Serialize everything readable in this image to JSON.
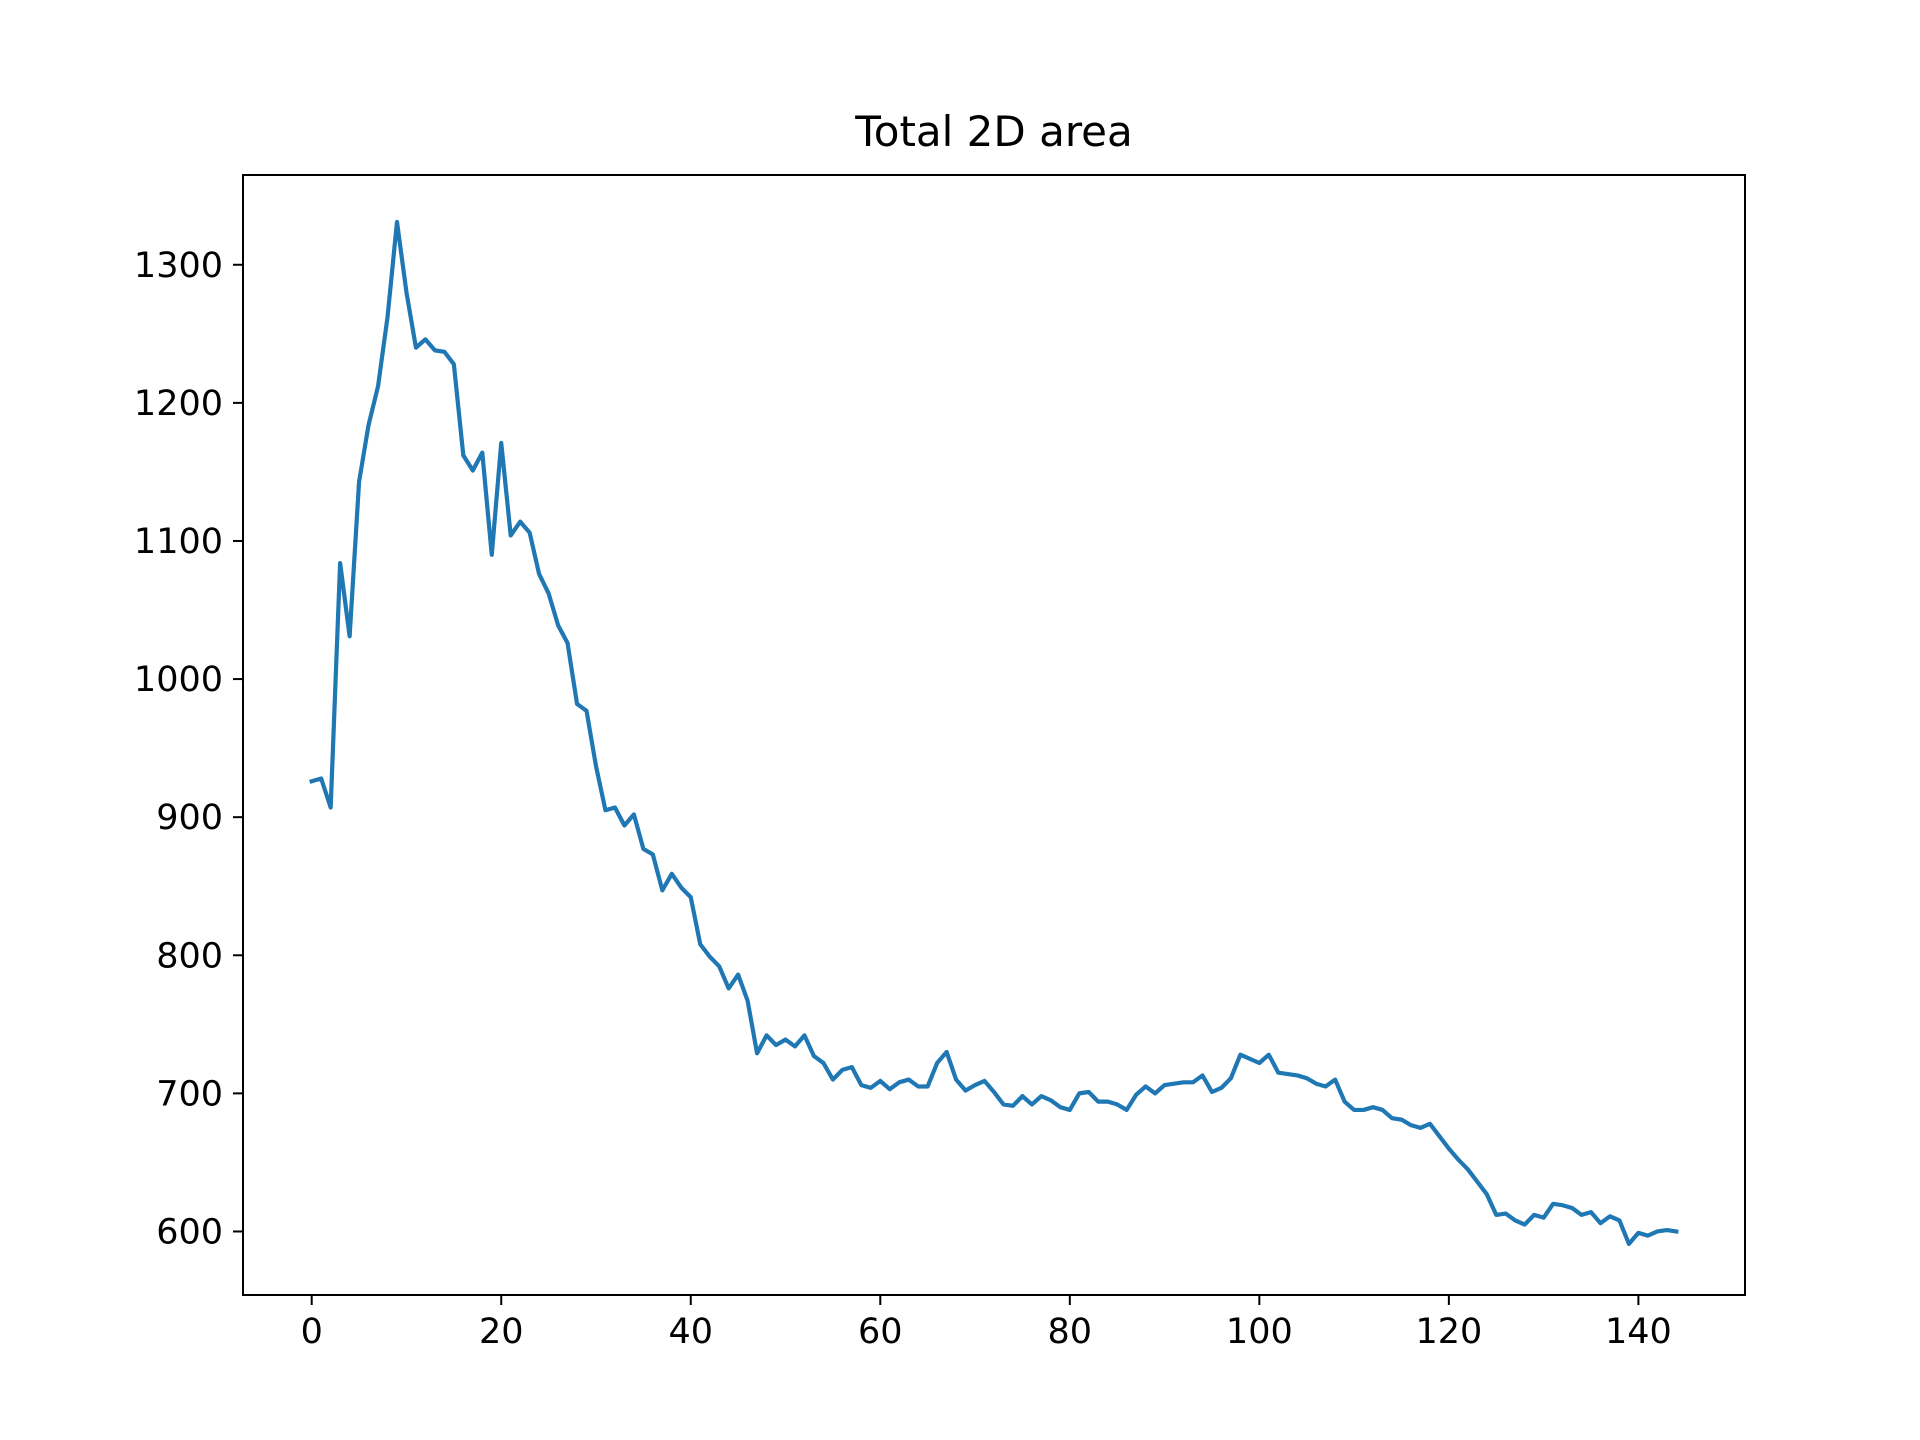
{
  "chart_data": {
    "type": "line",
    "title": "Total 2D area",
    "xlabel": "",
    "ylabel": "",
    "xlim": [
      -7.25,
      151.25
    ],
    "ylim": [
      554,
      1365
    ],
    "grid": false,
    "legend": "none",
    "x_ticks": [
      0,
      20,
      40,
      60,
      80,
      100,
      120,
      140
    ],
    "y_ticks": [
      600,
      700,
      800,
      900,
      1000,
      1100,
      1200,
      1300
    ],
    "series": [
      {
        "color": "#1f77b4",
        "x": [
          0,
          1,
          2,
          3,
          4,
          5,
          6,
          7,
          8,
          9,
          10,
          11,
          12,
          13,
          14,
          15,
          16,
          17,
          18,
          19,
          20,
          21,
          22,
          23,
          24,
          25,
          26,
          27,
          28,
          29,
          30,
          31,
          32,
          33,
          34,
          35,
          36,
          37,
          38,
          39,
          40,
          41,
          42,
          43,
          44,
          45,
          46,
          47,
          48,
          49,
          50,
          51,
          52,
          53,
          54,
          55,
          56,
          57,
          58,
          59,
          60,
          61,
          62,
          63,
          64,
          65,
          66,
          67,
          68,
          69,
          70,
          71,
          72,
          73,
          74,
          75,
          76,
          77,
          78,
          79,
          80,
          81,
          82,
          83,
          84,
          85,
          86,
          87,
          88,
          89,
          90,
          91,
          92,
          93,
          94,
          95,
          96,
          97,
          98,
          99,
          100,
          101,
          102,
          103,
          104,
          105,
          106,
          107,
          108,
          109,
          110,
          111,
          112,
          113,
          114,
          115,
          116,
          117,
          118,
          119,
          120,
          121,
          122,
          123,
          124,
          125,
          126,
          127,
          128,
          129,
          130,
          131,
          132,
          133,
          134,
          135,
          136,
          137,
          138,
          139,
          140,
          141,
          142,
          143,
          144
        ],
        "values": [
          926,
          928,
          907,
          1084,
          1031,
          1143,
          1184,
          1212,
          1262,
          1331,
          1280,
          1240,
          1246,
          1238,
          1237,
          1228,
          1162,
          1151,
          1164,
          1090,
          1171,
          1104,
          1114,
          1106,
          1076,
          1062,
          1039,
          1026,
          982,
          977,
          937,
          905,
          907,
          894,
          902,
          877,
          873,
          847,
          859,
          849,
          842,
          808,
          799,
          792,
          776,
          786,
          767,
          729,
          742,
          735,
          739,
          734,
          742,
          727,
          722,
          710,
          717,
          719,
          706,
          704,
          709,
          703,
          708,
          710,
          705,
          705,
          722,
          730,
          710,
          702,
          706,
          709,
          701,
          692,
          691,
          698,
          692,
          698,
          695,
          690,
          688,
          700,
          701,
          694,
          694,
          692,
          688,
          699,
          705,
          700,
          706,
          707,
          708,
          708,
          713,
          701,
          704,
          711,
          728,
          725,
          722,
          728,
          715,
          714,
          713,
          711,
          707,
          705,
          710,
          694,
          688,
          688,
          690,
          688,
          682,
          681,
          677,
          675,
          678,
          669,
          660,
          652,
          645,
          636,
          627,
          612,
          613,
          608,
          605,
          612,
          610,
          620,
          619,
          617,
          612,
          614,
          606,
          611,
          608,
          591,
          599,
          597,
          600,
          601,
          600
        ]
      }
    ]
  }
}
